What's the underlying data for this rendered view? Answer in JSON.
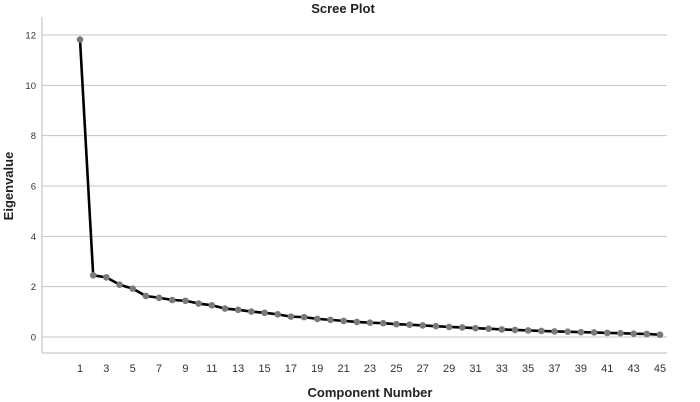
{
  "chart_data": {
    "type": "line",
    "title": "Scree Plot",
    "xlabel": "Component Number",
    "ylabel": "Eigenvalue",
    "xlim": [
      1,
      45
    ],
    "ylim": [
      0,
      12
    ],
    "y_ticks": [
      0,
      2,
      4,
      6,
      8,
      10,
      12
    ],
    "x_ticks": [
      1,
      3,
      5,
      7,
      9,
      11,
      13,
      15,
      17,
      19,
      21,
      23,
      25,
      27,
      29,
      31,
      33,
      35,
      37,
      39,
      41,
      43,
      45
    ],
    "grid": "horizontal",
    "x": [
      1,
      2,
      3,
      4,
      5,
      6,
      7,
      8,
      9,
      10,
      11,
      12,
      13,
      14,
      15,
      16,
      17,
      18,
      19,
      20,
      21,
      22,
      23,
      24,
      25,
      26,
      27,
      28,
      29,
      30,
      31,
      32,
      33,
      34,
      35,
      36,
      37,
      38,
      39,
      40,
      41,
      42,
      43,
      44,
      45
    ],
    "values": [
      11.82,
      2.45,
      2.37,
      2.08,
      1.92,
      1.63,
      1.56,
      1.47,
      1.44,
      1.33,
      1.26,
      1.13,
      1.08,
      1.01,
      0.96,
      0.9,
      0.81,
      0.79,
      0.72,
      0.68,
      0.64,
      0.6,
      0.57,
      0.55,
      0.51,
      0.49,
      0.46,
      0.43,
      0.4,
      0.38,
      0.35,
      0.33,
      0.3,
      0.28,
      0.26,
      0.24,
      0.22,
      0.21,
      0.19,
      0.18,
      0.16,
      0.15,
      0.13,
      0.12,
      0.09
    ],
    "colors": {
      "line": "#000000",
      "marker": "#7a7a7a",
      "grid": "#c4c4c4",
      "axis": "#bdbdbd",
      "text": "#222222"
    }
  }
}
